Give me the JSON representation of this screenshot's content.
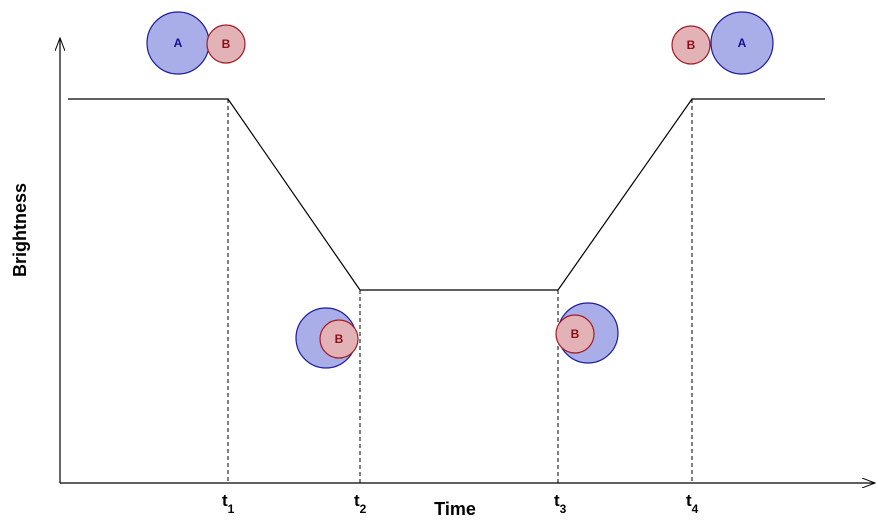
{
  "axes": {
    "y_label": "Brightness",
    "x_label": "Time"
  },
  "ticks": [
    {
      "symbol": "t",
      "subscript": "1"
    },
    {
      "symbol": "t",
      "subscript": "2"
    },
    {
      "symbol": "t",
      "subscript": "3"
    },
    {
      "symbol": "t",
      "subscript": "4"
    }
  ],
  "stages": [
    {
      "labels": [
        "A",
        "B"
      ]
    },
    {
      "labels": [
        "B"
      ]
    },
    {
      "labels": [
        "B"
      ]
    },
    {
      "labels": [
        "B",
        "A"
      ]
    }
  ]
}
